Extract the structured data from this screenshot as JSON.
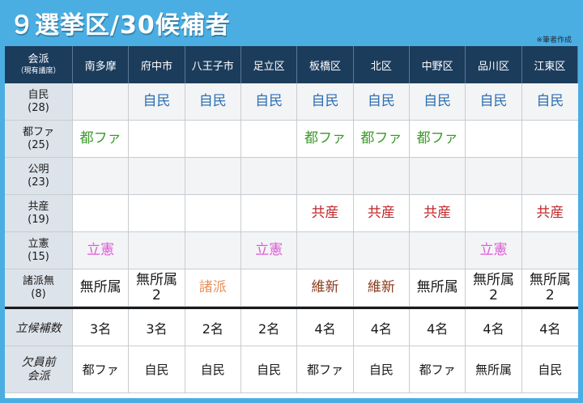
{
  "title": "９選挙区/30候補者",
  "note": "※筆者作成",
  "colors": {
    "jimin": "#2f6fb0",
    "tofa": "#3a9a2a",
    "rikken": "#e05ad8",
    "kyosan": "#c0282a",
    "ishin": "#8a3a1a",
    "shoha": "#e8905a",
    "neutral": "#1a1a1a"
  },
  "header": {
    "label_main": "会派",
    "label_sub": "（現有議席）",
    "districts": [
      "南多摩",
      "府中市",
      "八王子市",
      "足立区",
      "板橋区",
      "北区",
      "中野区",
      "品川区",
      "江東区"
    ]
  },
  "rows": [
    {
      "party": "自民",
      "seats": "(28)",
      "color": "jimin",
      "cells": [
        [],
        [
          "自民"
        ],
        [
          "自民"
        ],
        [
          "自民"
        ],
        [
          "自民"
        ],
        [
          "自民"
        ],
        [
          "自民"
        ],
        [
          "自民"
        ],
        [
          "自民"
        ]
      ]
    },
    {
      "party": "都ファ",
      "seats": "(25)",
      "color": "tofa",
      "cells": [
        [
          "都ファ"
        ],
        [],
        [],
        [],
        [
          "都ファ"
        ],
        [
          "都ファ"
        ],
        [
          "都ファ"
        ],
        [],
        []
      ]
    },
    {
      "party": "公明",
      "seats": "(23)",
      "color": "neutral",
      "cells": [
        [],
        [],
        [],
        [],
        [],
        [],
        [],
        [],
        []
      ]
    },
    {
      "party": "共産",
      "seats": "(19)",
      "color": "kyosan",
      "cells": [
        [],
        [],
        [],
        [],
        [
          "共産"
        ],
        [
          "共産"
        ],
        [
          "共産"
        ],
        [],
        [
          "共産"
        ]
      ]
    },
    {
      "party": "立憲",
      "seats": "(15)",
      "color": "rikken",
      "cells": [
        [
          "立憲"
        ],
        [],
        [],
        [
          "立憲"
        ],
        [],
        [],
        [],
        [
          "立憲"
        ],
        []
      ]
    },
    {
      "party": "諸派無",
      "seats": "(8)",
      "color": "neutral",
      "cells": [
        [
          {
            "t": "無所属",
            "c": "neutral"
          }
        ],
        [
          {
            "t": "無所属",
            "c": "neutral"
          },
          {
            "t": "2",
            "c": "neutral"
          }
        ],
        [
          {
            "t": "諸派",
            "c": "shoha"
          }
        ],
        [],
        [
          {
            "t": "維新",
            "c": "ishin"
          }
        ],
        [
          {
            "t": "維新",
            "c": "ishin"
          }
        ],
        [
          {
            "t": "無所属",
            "c": "neutral"
          }
        ],
        [
          {
            "t": "無所属",
            "c": "neutral"
          },
          {
            "t": "2",
            "c": "neutral"
          }
        ],
        [
          {
            "t": "無所属",
            "c": "neutral"
          },
          {
            "t": "2",
            "c": "neutral"
          }
        ]
      ]
    }
  ],
  "candidates": {
    "label": "立候補数",
    "values": [
      "3名",
      "3名",
      "2名",
      "2名",
      "4名",
      "4名",
      "4名",
      "4名",
      "4名"
    ]
  },
  "previous": {
    "label_line1": "欠員前",
    "label_line2": "会派",
    "values": [
      "都ファ",
      "自民",
      "自民",
      "自民",
      "都ファ",
      "自民",
      "都ファ",
      "無所属",
      "自民"
    ]
  }
}
